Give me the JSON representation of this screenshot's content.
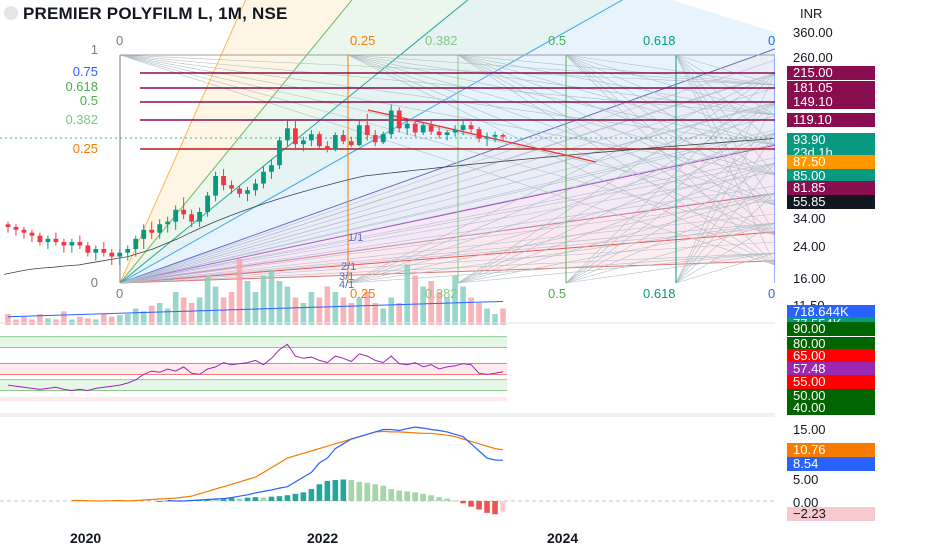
{
  "header": {
    "title": "PREMIER POLYFILM L, 1M, NSE",
    "currency": "INR"
  },
  "x_axis_labels": [
    {
      "text": "2020",
      "x": 100
    },
    {
      "text": "2022",
      "x": 337
    },
    {
      "text": "2024",
      "x": 577
    }
  ],
  "price_axis_ticks": [
    {
      "text": "360.00",
      "y": 33
    },
    {
      "text": "260.00",
      "y": 58
    },
    {
      "text": "34.00",
      "y": 219
    },
    {
      "text": "24.00",
      "y": 247
    },
    {
      "text": "16.00",
      "y": 279
    },
    {
      "text": "11.50",
      "y": 306
    },
    {
      "text": "15.00",
      "y": 430
    },
    {
      "text": "5.00",
      "y": 480
    },
    {
      "text": "0.00",
      "y": 503
    }
  ],
  "price_badges": [
    {
      "text": "215.00",
      "y": 73,
      "color": "#880e4f"
    },
    {
      "text": "181.05",
      "y": 88,
      "color": "#880e4f"
    },
    {
      "text": "149.10",
      "y": 102,
      "color": "#880e4f"
    },
    {
      "text": "119.10",
      "y": 120,
      "color": "#880e4f"
    },
    {
      "text": "93.90",
      "y": 140,
      "color": "#089981"
    },
    {
      "text": "23d 1h",
      "y": 153,
      "color": "#089981"
    },
    {
      "text": "87.50",
      "y": 162,
      "color": "#ff9800"
    },
    {
      "text": "85.00",
      "y": 176,
      "color": "#089981"
    },
    {
      "text": "81.85",
      "y": 188,
      "color": "#880e4f"
    },
    {
      "text": "55.85",
      "y": 202,
      "color": "#131722"
    },
    {
      "text": "718.644K",
      "y": 312,
      "color": "#2962ff"
    },
    {
      "text": "77.554K",
      "y": 324,
      "color": "#089981"
    },
    {
      "text": "90.00",
      "y": 329,
      "color": "#006400"
    },
    {
      "text": "80.00",
      "y": 344,
      "color": "#006400"
    },
    {
      "text": "65.00",
      "y": 356,
      "color": "#ff0000"
    },
    {
      "text": "57.48",
      "y": 369,
      "color": "#9c27b0"
    },
    {
      "text": "55.00",
      "y": 382,
      "color": "#ff0000"
    },
    {
      "text": "50.00",
      "y": 396,
      "color": "#006400"
    },
    {
      "text": "40.00",
      "y": 408,
      "color": "#006400"
    },
    {
      "text": "10.76",
      "y": 450,
      "color": "#f57c00"
    },
    {
      "text": "8.54",
      "y": 464,
      "color": "#2962ff"
    },
    {
      "text": "−2.23",
      "y": 514,
      "color": "#f7c9cf",
      "text_color": "#131722"
    }
  ],
  "fib_levels_left": [
    {
      "text": "1",
      "y": 50,
      "color": "#787b86"
    },
    {
      "text": "0.75",
      "y": 72,
      "color": "#2962ff"
    },
    {
      "text": "0.618",
      "y": 87,
      "color": "#4caf50"
    },
    {
      "text": "0.5",
      "y": 101,
      "color": "#4caf50"
    },
    {
      "text": "0.382",
      "y": 120,
      "color": "#81c784"
    },
    {
      "text": "0.25",
      "y": 149,
      "color": "#f57c00"
    },
    {
      "text": "0",
      "y": 283,
      "color": "#787b86"
    }
  ],
  "fib_time_labels": [
    {
      "text": "0",
      "x": 116,
      "color": "#787b86"
    },
    {
      "text": "0.25",
      "x": 350,
      "color": "#f57c00"
    },
    {
      "text": "0.382",
      "x": 425,
      "color": "#81c784"
    },
    {
      "text": "0.5",
      "x": 548,
      "color": "#4caf50"
    },
    {
      "text": "0.618",
      "x": 643,
      "color": "#089981"
    },
    {
      "text": "0",
      "x": 768,
      "color": "#2962ff"
    }
  ],
  "gann_labels": [
    {
      "text": "1/1",
      "x": 348,
      "y": 232
    },
    {
      "text": "2/1",
      "x": 341,
      "y": 261
    },
    {
      "text": "3/1",
      "x": 339,
      "y": 271
    },
    {
      "text": "4/1",
      "x": 339,
      "y": 279
    }
  ],
  "chart_data": [
    {
      "type": "candlestick",
      "panel": "price",
      "title": "PREMIER POLYFILM L, 1M, NSE",
      "y_scale": "log",
      "ylim": [
        14,
        380
      ],
      "x_labels": [
        "2020",
        "2022",
        "2024"
      ],
      "ohlc": [
        [
          30,
          31,
          27,
          29
        ],
        [
          29,
          30,
          26,
          28
        ],
        [
          28,
          29,
          25,
          27
        ],
        [
          27,
          28,
          24,
          26
        ],
        [
          26,
          27,
          23,
          24
        ],
        [
          24,
          26,
          22,
          25
        ],
        [
          25,
          27,
          23,
          24
        ],
        [
          24,
          25,
          21,
          23
        ],
        [
          23,
          25,
          21,
          24
        ],
        [
          24,
          26,
          22,
          23
        ],
        [
          23,
          24,
          20,
          21
        ],
        [
          21,
          23,
          19,
          22
        ],
        [
          22,
          24,
          20,
          21
        ],
        [
          21,
          22,
          18,
          20
        ],
        [
          20,
          22,
          18,
          21
        ],
        [
          21,
          23,
          19,
          22
        ],
        [
          22,
          26,
          20,
          25
        ],
        [
          25,
          30,
          22,
          28
        ],
        [
          28,
          31,
          25,
          27
        ],
        [
          27,
          32,
          25,
          30
        ],
        [
          30,
          33,
          27,
          31
        ],
        [
          31,
          38,
          28,
          36
        ],
        [
          36,
          42,
          32,
          34
        ],
        [
          34,
          36,
          29,
          31
        ],
        [
          31,
          37,
          29,
          35
        ],
        [
          35,
          45,
          33,
          43
        ],
        [
          43,
          58,
          40,
          55
        ],
        [
          55,
          60,
          46,
          49
        ],
        [
          49,
          52,
          44,
          47
        ],
        [
          47,
          49,
          42,
          44
        ],
        [
          44,
          48,
          40,
          46
        ],
        [
          46,
          53,
          43,
          50
        ],
        [
          50,
          62,
          47,
          58
        ],
        [
          58,
          68,
          53,
          63
        ],
        [
          63,
          90,
          60,
          86
        ],
        [
          86,
          110,
          80,
          100
        ],
        [
          100,
          112,
          76,
          82
        ],
        [
          82,
          90,
          75,
          86
        ],
        [
          86,
          98,
          80,
          93
        ],
        [
          93,
          96,
          78,
          80
        ],
        [
          80,
          85,
          74,
          77
        ],
        [
          77,
          95,
          75,
          92
        ],
        [
          92,
          98,
          82,
          85
        ],
        [
          85,
          90,
          79,
          81
        ],
        [
          81,
          110,
          80,
          104
        ],
        [
          104,
          120,
          86,
          92
        ],
        [
          92,
          98,
          80,
          84
        ],
        [
          84,
          96,
          82,
          93
        ],
        [
          93,
          135,
          88,
          125
        ],
        [
          125,
          130,
          95,
          100
        ],
        [
          100,
          110,
          92,
          106
        ],
        [
          106,
          112,
          90,
          95
        ],
        [
          95,
          108,
          92,
          104
        ],
        [
          104,
          110,
          92,
          96
        ],
        [
          96,
          102,
          88,
          92
        ],
        [
          92,
          98,
          86,
          95
        ],
        [
          95,
          104,
          90,
          98
        ],
        [
          98,
          110,
          92,
          104
        ],
        [
          104,
          109,
          95,
          99
        ],
        [
          99,
          102,
          84,
          88
        ],
        [
          88,
          95,
          80,
          90
        ],
        [
          90,
          96,
          84,
          92
        ],
        [
          92,
          94,
          86,
          90
        ]
      ],
      "ma_long": [
        16,
        16.5,
        17,
        17.3,
        17.5,
        17.8,
        18,
        18.5,
        19,
        19.5,
        20,
        21,
        22,
        23.5,
        25,
        27,
        29,
        31,
        33,
        35,
        37,
        39,
        41,
        43,
        45,
        47,
        49,
        51,
        53,
        55,
        56,
        57,
        58,
        59,
        60,
        61,
        62,
        63,
        64,
        65,
        66,
        67,
        68,
        69,
        70,
        71,
        72,
        73,
        74,
        75,
        76,
        77,
        78,
        79,
        80,
        81,
        82,
        83,
        84,
        85,
        86,
        87,
        88
      ]
    },
    {
      "type": "bar",
      "panel": "volume",
      "series": [
        {
          "values": [
            0.2,
            0.1,
            0.15,
            0.1,
            0.2,
            0.12,
            0.1,
            0.25,
            0.1,
            0.15,
            0.12,
            0.1,
            0.2,
            0.15,
            0.18,
            0.2,
            0.3,
            0.25,
            0.35,
            0.4,
            0.3,
            0.6,
            0.5,
            0.4,
            0.5,
            0.9,
            0.7,
            0.5,
            0.6,
            1.2,
            0.8,
            0.6,
            0.9,
            1.0,
            0.8,
            0.7,
            0.5,
            0.4,
            0.6,
            0.5,
            0.7,
            0.6,
            0.5,
            0.4,
            0.5,
            0.6,
            0.4,
            0.3,
            0.5,
            0.4,
            1.1,
            0.9,
            0.7,
            0.8,
            0.6,
            0.5,
            0.9,
            0.7,
            0.5,
            0.4,
            0.3,
            0.2,
            0.3
          ]
        }
      ],
      "value_labels": [
        "718.644K",
        "77.554K"
      ]
    },
    {
      "type": "line",
      "panel": "rsi",
      "levels": [
        90,
        80,
        65,
        55,
        50,
        40
      ],
      "last_value": 57.48,
      "series": [
        {
          "values": [
            45,
            44,
            43,
            42,
            41,
            42,
            43,
            41,
            40,
            41,
            40,
            42,
            43,
            44,
            45,
            47,
            50,
            55,
            58,
            57,
            60,
            58,
            62,
            56,
            55,
            60,
            62,
            66,
            64,
            65,
            66,
            68,
            64,
            70,
            78,
            83,
            72,
            70,
            71,
            68,
            66,
            72,
            70,
            67,
            74,
            72,
            68,
            66,
            72,
            65,
            64,
            66,
            62,
            64,
            60,
            62,
            63,
            65,
            64,
            56,
            55,
            56,
            57.48
          ]
        }
      ]
    },
    {
      "type": "line",
      "panel": "macd",
      "ylim": [
        -4,
        17
      ],
      "axis_ticks": [
        15,
        5,
        0
      ],
      "series": [
        {
          "values": [
            0.1,
            0.1,
            0.05,
            0,
            0,
            0.05,
            0.1,
            0,
            0.1,
            0.2,
            0.3,
            0.4,
            0.5,
            0.6,
            0.8,
            1,
            1.5,
            2,
            2.5,
            3,
            3.5,
            4,
            4.5,
            5,
            6,
            7,
            8,
            9,
            9.5,
            10,
            10.5,
            11,
            11.5,
            12,
            12.5,
            13,
            13.5,
            14,
            14.5,
            14.6,
            14.5,
            14.5,
            14.4,
            14.3,
            14.2,
            14.2,
            14,
            13.8,
            13.5,
            13,
            12.5,
            12,
            11.5,
            11,
            10.76
          ]
        },
        {
          "values": [
            0.1,
            0,
            0,
            0.1,
            0.2,
            0.3,
            0.4,
            0.5,
            0.7,
            1,
            1.3,
            1.7,
            2,
            2.3,
            2.7,
            3,
            4,
            5,
            6,
            8,
            9,
            11,
            12,
            13,
            13.5,
            14,
            14.5,
            15,
            15,
            14.8,
            15.2,
            15.5,
            15.3,
            15,
            14.8,
            14.5,
            14,
            13.5,
            12,
            10.5,
            9,
            8.6,
            8.54
          ]
        },
        {
          "values": [
            0,
            0.1,
            0.1,
            0.1,
            0.2,
            0.3,
            0.4,
            0.3,
            0.4,
            0.6,
            0.5,
            0.7,
            0.8,
            0.7,
            0.9,
            1.0,
            1.2,
            1.5,
            1.8,
            2.5,
            3.5,
            4.2,
            4.4,
            4.5,
            4.4,
            4.0,
            3.8,
            3.5,
            3.2,
            2.5,
            2.2,
            2.0,
            1.8,
            1.5,
            1.2,
            0.8,
            0.5,
            0.1,
            -0.5,
            -1.2,
            -1.8,
            -2.5,
            -2.8,
            -2.23
          ]
        }
      ]
    }
  ]
}
